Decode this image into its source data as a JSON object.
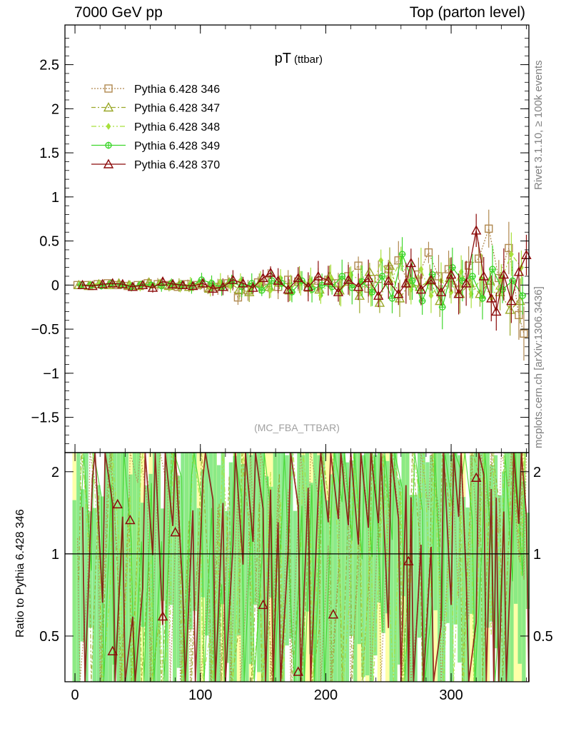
{
  "header": {
    "left": "7000 GeV pp",
    "right": "Top (parton level)"
  },
  "side_labels": {
    "rivet": "Rivet 3.1.10, ≥ 100k events",
    "mcplots": "mcplots.cern.ch [arXiv:1306.3436]"
  },
  "chart_data": [
    {
      "type": "scatter",
      "title": "pT",
      "title_suffix": "(ttbar)",
      "watermark": "(MC_FBA_TTBAR)",
      "ylim": [
        -1.9,
        2.95
      ],
      "yticks": [
        -1.5,
        -1,
        -0.5,
        0,
        0.5,
        1,
        1.5,
        2,
        2.5
      ],
      "ytick_labels": [
        "−1.5",
        "−1",
        "−0.5",
        "0",
        "0.5",
        "1",
        "1.5",
        "2",
        "2.5"
      ],
      "xlim": [
        -8,
        362
      ],
      "legend_position": "top-left",
      "series": [
        {
          "name": "Pythia 6.428 346",
          "color": "#b0884f",
          "marker": "square",
          "dash": "2,2",
          "points": [
            [
              2,
              0.0
            ],
            [
              10,
              0.0
            ],
            [
              18,
              0.01
            ],
            [
              26,
              0.02
            ],
            [
              34,
              0.0
            ],
            [
              42,
              -0.01
            ],
            [
              50,
              0.0
            ],
            [
              58,
              0.02
            ],
            [
              66,
              0.01
            ],
            [
              74,
              0.0
            ],
            [
              82,
              -0.02
            ],
            [
              90,
              0.01
            ],
            [
              98,
              0.0
            ],
            [
              106,
              -0.03
            ],
            [
              114,
              -0.02
            ],
            [
              122,
              0.02
            ],
            [
              130,
              -0.14
            ],
            [
              138,
              -0.06
            ],
            [
              146,
              0.03
            ],
            [
              154,
              0.05
            ],
            [
              162,
              -0.02
            ],
            [
              170,
              0.06
            ],
            [
              178,
              0.04
            ],
            [
              186,
              -0.03
            ],
            [
              194,
              0.05
            ],
            [
              202,
              0.06
            ],
            [
              210,
              0.02
            ],
            [
              218,
              0.1
            ],
            [
              226,
              0.22
            ],
            [
              234,
              -0.04
            ],
            [
              242,
              0.07
            ],
            [
              250,
              0.18
            ],
            [
              258,
              0.28
            ],
            [
              266,
              0.02
            ],
            [
              274,
              0.12
            ],
            [
              282,
              0.37
            ],
            [
              290,
              0.1
            ],
            [
              298,
              0.18
            ],
            [
              306,
              -0.05
            ],
            [
              314,
              0.22
            ],
            [
              322,
              0.3
            ],
            [
              330,
              0.64
            ],
            [
              338,
              0.08
            ],
            [
              346,
              0.42
            ],
            [
              354,
              -0.34
            ],
            [
              358,
              -0.55
            ]
          ]
        },
        {
          "name": "Pythia 6.428 347",
          "color": "#9aa829",
          "marker": "triangle",
          "dash": "6,3,2,3",
          "points": [
            [
              3,
              0.0
            ],
            [
              11,
              -0.01
            ],
            [
              19,
              0.01
            ],
            [
              27,
              0.0
            ],
            [
              35,
              0.02
            ],
            [
              43,
              0.0
            ],
            [
              51,
              -0.01
            ],
            [
              59,
              0.03
            ],
            [
              67,
              0.01
            ],
            [
              75,
              -0.01
            ],
            [
              83,
              0.0
            ],
            [
              91,
              -0.02
            ],
            [
              99,
              0.02
            ],
            [
              107,
              -0.04
            ],
            [
              115,
              0.0
            ],
            [
              123,
              0.03
            ],
            [
              131,
              -0.05
            ],
            [
              139,
              -0.08
            ],
            [
              147,
              0.02
            ],
            [
              155,
              -0.02
            ],
            [
              163,
              0.03
            ],
            [
              171,
              -0.06
            ],
            [
              179,
              0.06
            ],
            [
              187,
              0.02
            ],
            [
              195,
              -0.05
            ],
            [
              203,
              0.1
            ],
            [
              211,
              -0.06
            ],
            [
              219,
              0.04
            ],
            [
              227,
              -0.12
            ],
            [
              235,
              0.15
            ],
            [
              243,
              -0.2
            ],
            [
              251,
              0.22
            ],
            [
              259,
              -0.15
            ],
            [
              267,
              0.02
            ],
            [
              275,
              -0.02
            ],
            [
              283,
              0.05
            ],
            [
              291,
              -0.18
            ],
            [
              299,
              0.08
            ],
            [
              307,
              -0.1
            ],
            [
              315,
              0.02
            ],
            [
              323,
              -0.1
            ],
            [
              331,
              0.05
            ],
            [
              339,
              -0.08
            ],
            [
              347,
              -0.28
            ],
            [
              355,
              -0.18
            ]
          ]
        },
        {
          "name": "Pythia 6.428 348",
          "color": "#a8e03c",
          "marker": "diamond",
          "dash": "7,3,2,3,2,3",
          "points": [
            [
              4,
              -0.01
            ],
            [
              12,
              0.01
            ],
            [
              20,
              0.02
            ],
            [
              28,
              -0.01
            ],
            [
              36,
              0.0
            ],
            [
              44,
              0.01
            ],
            [
              52,
              -0.02
            ],
            [
              60,
              0.0
            ],
            [
              68,
              0.02
            ],
            [
              76,
              0.0
            ],
            [
              84,
              -0.01
            ],
            [
              92,
              0.02
            ],
            [
              100,
              0.0
            ],
            [
              108,
              -0.03
            ],
            [
              116,
              0.04
            ],
            [
              124,
              -0.02
            ],
            [
              132,
              0.05
            ],
            [
              140,
              -0.04
            ],
            [
              148,
              0.03
            ],
            [
              156,
              -0.06
            ],
            [
              164,
              0.08
            ],
            [
              172,
              -0.03
            ],
            [
              180,
              0.02
            ],
            [
              188,
              0.05
            ],
            [
              196,
              -0.12
            ],
            [
              204,
              0.08
            ],
            [
              212,
              -0.07
            ],
            [
              220,
              0.12
            ],
            [
              228,
              0.05
            ],
            [
              236,
              -0.1
            ],
            [
              244,
              0.28
            ],
            [
              252,
              0.04
            ],
            [
              260,
              0.3
            ],
            [
              268,
              -0.05
            ],
            [
              276,
              0.18
            ],
            [
              284,
              -0.12
            ],
            [
              292,
              0.05
            ],
            [
              300,
              -0.08
            ],
            [
              308,
              0.15
            ],
            [
              316,
              -0.1
            ],
            [
              324,
              0.08
            ],
            [
              332,
              -0.15
            ],
            [
              340,
              0.06
            ],
            [
              348,
              0.35
            ],
            [
              356,
              0.2
            ]
          ]
        },
        {
          "name": "Pythia 6.428 349",
          "color": "#3ed62c",
          "marker": "circleplus",
          "dash": "",
          "points": [
            [
              5,
              0.0
            ],
            [
              13,
              0.0
            ],
            [
              21,
              -0.01
            ],
            [
              29,
              0.02
            ],
            [
              37,
              0.0
            ],
            [
              45,
              -0.02
            ],
            [
              53,
              0.01
            ],
            [
              61,
              0.0
            ],
            [
              69,
              -0.01
            ],
            [
              77,
              0.02
            ],
            [
              85,
              0.0
            ],
            [
              93,
              -0.01
            ],
            [
              101,
              0.06
            ],
            [
              109,
              0.02
            ],
            [
              117,
              -0.03
            ],
            [
              125,
              0.04
            ],
            [
              133,
              -0.02
            ],
            [
              141,
              0.02
            ],
            [
              149,
              -0.06
            ],
            [
              157,
              0.05
            ],
            [
              165,
              0.02
            ],
            [
              173,
              -0.08
            ],
            [
              181,
              0.05
            ],
            [
              189,
              -0.05
            ],
            [
              197,
              0.0
            ],
            [
              205,
              -0.02
            ],
            [
              213,
              0.1
            ],
            [
              221,
              -0.03
            ],
            [
              229,
              0.04
            ],
            [
              237,
              -0.08
            ],
            [
              245,
              0.1
            ],
            [
              253,
              -0.15
            ],
            [
              261,
              0.35
            ],
            [
              269,
              0.05
            ],
            [
              277,
              -0.18
            ],
            [
              285,
              0.12
            ],
            [
              293,
              -0.25
            ],
            [
              301,
              0.2
            ],
            [
              309,
              0.05
            ],
            [
              317,
              0.1
            ],
            [
              325,
              -0.15
            ],
            [
              333,
              0.18
            ],
            [
              341,
              -0.05
            ],
            [
              349,
              0.05
            ],
            [
              357,
              -0.12
            ]
          ]
        },
        {
          "name": "Pythia 6.428 370",
          "color": "#8b0a0a",
          "marker": "triangle",
          "dash": "",
          "points": [
            [
              6,
              0.0
            ],
            [
              14,
              -0.01
            ],
            [
              22,
              0.01
            ],
            [
              30,
              0.02
            ],
            [
              38,
              0.01
            ],
            [
              46,
              -0.02
            ],
            [
              54,
              0.0
            ],
            [
              62,
              -0.03
            ],
            [
              70,
              0.04
            ],
            [
              78,
              0.01
            ],
            [
              86,
              0.0
            ],
            [
              94,
              -0.01
            ],
            [
              102,
              0.02
            ],
            [
              110,
              -0.04
            ],
            [
              118,
              -0.02
            ],
            [
              126,
              0.06
            ],
            [
              134,
              0.02
            ],
            [
              142,
              -0.03
            ],
            [
              150,
              0.08
            ],
            [
              156,
              0.14
            ],
            [
              162,
              0.05
            ],
            [
              170,
              -0.05
            ],
            [
              178,
              0.08
            ],
            [
              186,
              -0.02
            ],
            [
              194,
              0.1
            ],
            [
              202,
              0.05
            ],
            [
              210,
              -0.08
            ],
            [
              218,
              0.06
            ],
            [
              226,
              -0.02
            ],
            [
              234,
              0.08
            ],
            [
              242,
              -0.12
            ],
            [
              250,
              0.05
            ],
            [
              258,
              -0.1
            ],
            [
              264,
              0.02
            ],
            [
              268,
              0.25
            ],
            [
              276,
              -0.05
            ],
            [
              284,
              0.06
            ],
            [
              292,
              -0.08
            ],
            [
              300,
              0.12
            ],
            [
              306,
              -0.1
            ],
            [
              312,
              0.02
            ],
            [
              320,
              0.62
            ],
            [
              326,
              0.1
            ],
            [
              332,
              -0.15
            ],
            [
              336,
              -0.3
            ],
            [
              342,
              0.12
            ],
            [
              348,
              -0.18
            ],
            [
              354,
              0.15
            ],
            [
              360,
              0.34
            ]
          ]
        }
      ]
    },
    {
      "type": "scatter",
      "ylabel": "Ratio to Pythia 6.428 346",
      "ylim": [
        0.34,
        2.35
      ],
      "yscale": "log",
      "yticks": [
        0.5,
        1,
        2
      ],
      "ytick_labels": [
        "0.5",
        "1",
        "2"
      ],
      "reference_line": 1,
      "xlim": [
        -8,
        362
      ],
      "xticks": [
        0,
        100,
        200,
        300
      ],
      "xtick_labels": [
        "0",
        "100",
        "200",
        "300"
      ],
      "ratio_markers": [
        [
          34,
          1.52
        ],
        [
          44,
          1.33
        ],
        [
          30,
          0.44
        ],
        [
          80,
          1.2
        ],
        [
          70,
          0.59
        ],
        [
          150,
          0.65
        ],
        [
          206,
          0.6
        ],
        [
          266,
          0.94
        ],
        [
          320,
          1.9
        ],
        [
          178,
          0.37
        ]
      ]
    }
  ]
}
